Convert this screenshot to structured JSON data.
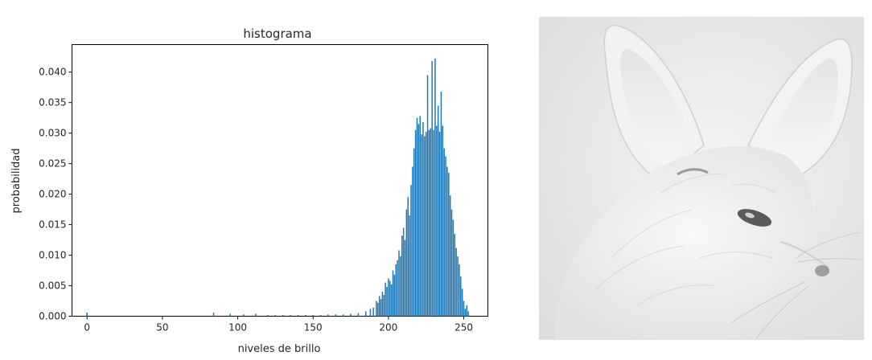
{
  "chart_data": {
    "type": "bar",
    "title": "histograma",
    "xlabel": "niveles de brillo",
    "ylabel": "probabilidad",
    "xlim": [
      -10,
      266
    ],
    "ylim": [
      0,
      0.0445
    ],
    "xticks": [
      0,
      50,
      100,
      150,
      200,
      250
    ],
    "yticks": [
      0.0,
      0.005,
      0.01,
      0.015,
      0.02,
      0.025,
      0.03,
      0.035,
      0.04
    ],
    "ytick_labels": [
      "0.000",
      "0.005",
      "0.010",
      "0.015",
      "0.020",
      "0.025",
      "0.030",
      "0.035",
      "0.040"
    ],
    "grid": false,
    "bar_color": "#1f77b4",
    "x": [
      0,
      84,
      95,
      104,
      112,
      120,
      125,
      130,
      135,
      140,
      145,
      150,
      155,
      160,
      165,
      170,
      175,
      180,
      185,
      188,
      190,
      192,
      193,
      194,
      195,
      196,
      197,
      198,
      199,
      200,
      201,
      202,
      203,
      204,
      205,
      206,
      207,
      208,
      209,
      210,
      211,
      212,
      213,
      214,
      215,
      216,
      217,
      218,
      219,
      220,
      221,
      222,
      223,
      224,
      225,
      226,
      227,
      228,
      229,
      230,
      231,
      232,
      233,
      234,
      235,
      236,
      237,
      238,
      239,
      240,
      241,
      242,
      243,
      244,
      245,
      246,
      247,
      248,
      249,
      250,
      251,
      252,
      253
    ],
    "values": [
      0.0006,
      0.0006,
      0.0004,
      0.0003,
      0.0004,
      0.0002,
      0.0002,
      0.0002,
      0.0002,
      0.0002,
      0.0002,
      0.0002,
      0.0002,
      0.0003,
      0.0003,
      0.0003,
      0.0004,
      0.0005,
      0.0008,
      0.0012,
      0.0014,
      0.0025,
      0.0022,
      0.0033,
      0.0028,
      0.004,
      0.0035,
      0.0055,
      0.0048,
      0.0062,
      0.0058,
      0.0052,
      0.0075,
      0.0068,
      0.0085,
      0.0092,
      0.0108,
      0.0098,
      0.0132,
      0.0145,
      0.0125,
      0.0175,
      0.0195,
      0.0165,
      0.0215,
      0.0245,
      0.0275,
      0.0305,
      0.0325,
      0.0315,
      0.0328,
      0.0298,
      0.0318,
      0.0295,
      0.0302,
      0.0395,
      0.0305,
      0.0308,
      0.0418,
      0.0305,
      0.0422,
      0.0312,
      0.0345,
      0.0302,
      0.0368,
      0.0312,
      0.0275,
      0.0262,
      0.0245,
      0.0235,
      0.0198,
      0.0175,
      0.0158,
      0.0135,
      0.0112,
      0.0098,
      0.0085,
      0.0065,
      0.0045,
      0.0025,
      0.0012,
      0.0018,
      0.0008
    ]
  }
}
